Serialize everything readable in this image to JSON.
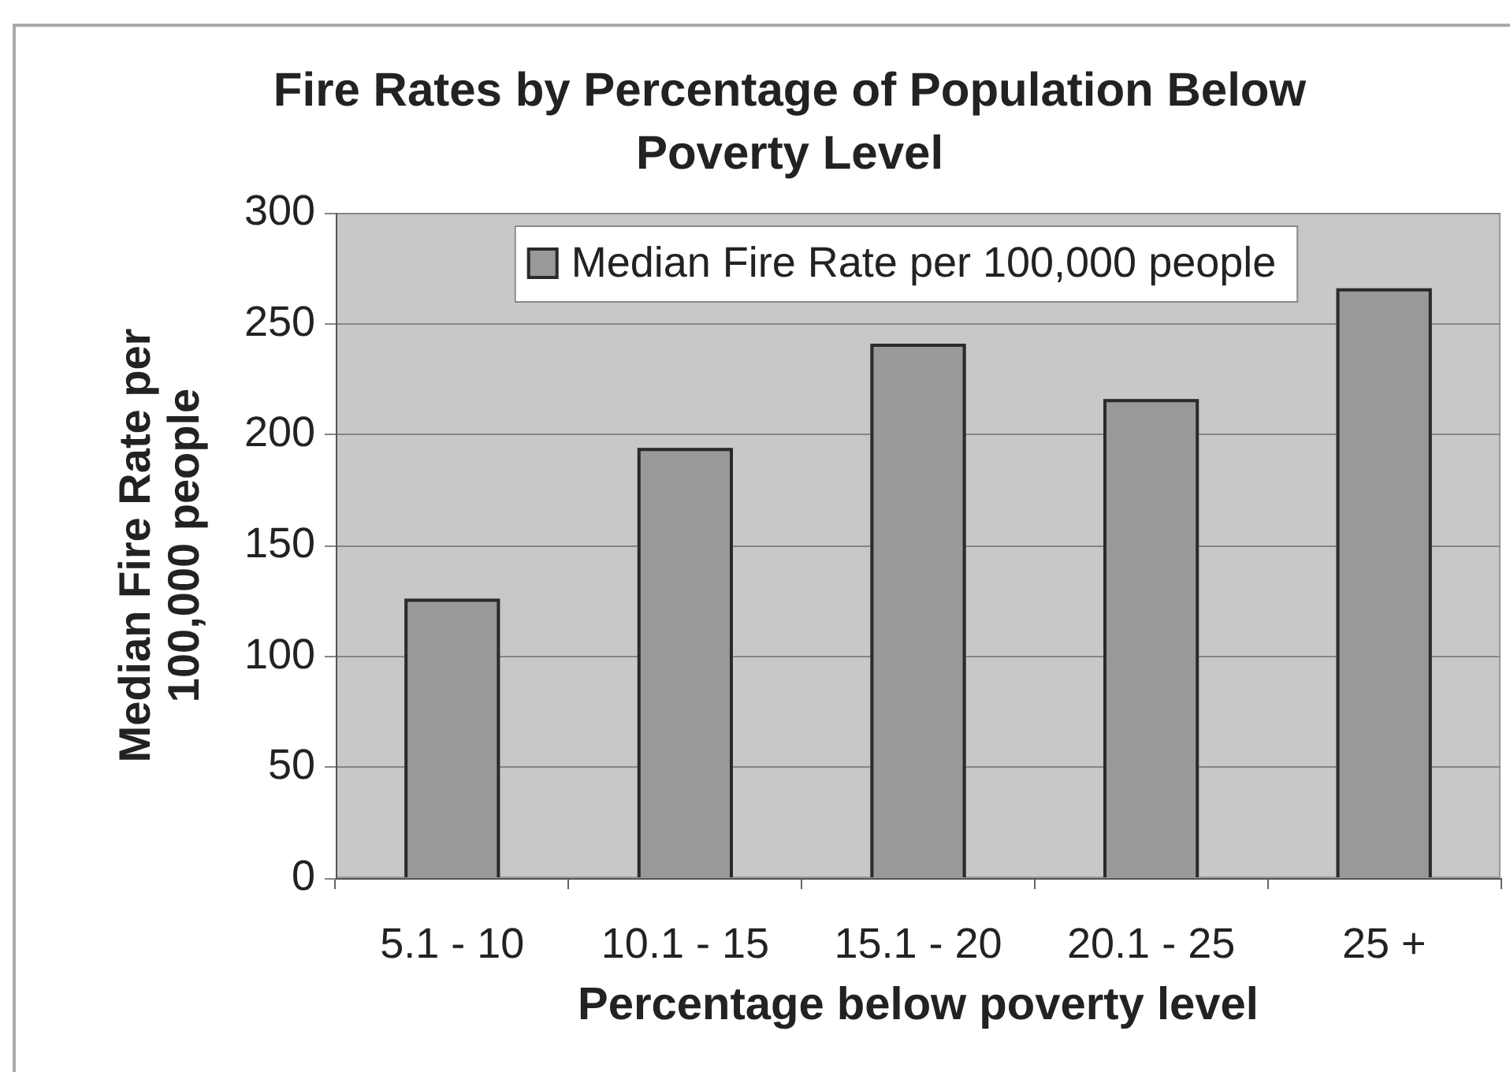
{
  "chart_data": {
    "type": "bar",
    "title": "Fire Rates by Percentage of Population Below Poverty Level",
    "xlabel": "Percentage below poverty level",
    "ylabel": "Median Fire Rate per 100,000 people",
    "categories": [
      "5.1 - 10",
      "10.1 - 15",
      "15.1 - 20",
      "20.1 - 25",
      "25 +"
    ],
    "series": [
      {
        "name": "Median Fire Rate per 100,000 people",
        "color": "#999999",
        "values": [
          126,
          194,
          241,
          216,
          266
        ]
      }
    ],
    "ylim": [
      0,
      300
    ],
    "yticks": [
      0,
      50,
      100,
      150,
      200,
      250,
      300
    ],
    "grid": "y",
    "legend": "top"
  }
}
